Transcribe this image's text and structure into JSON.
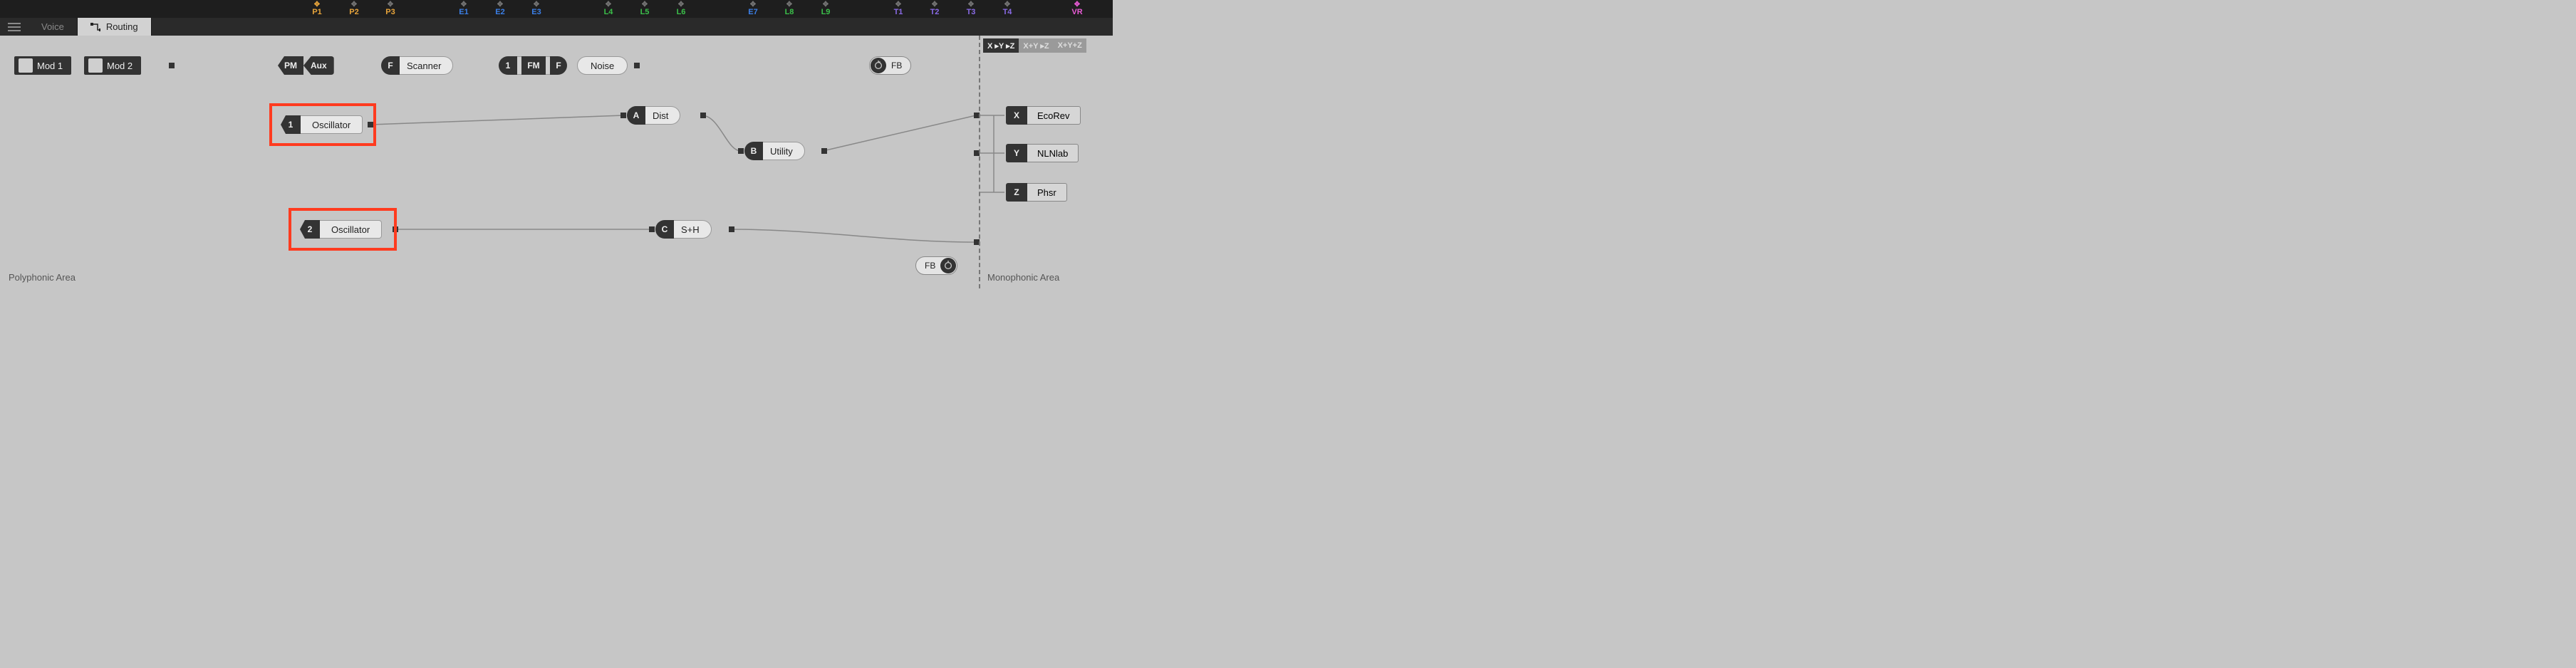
{
  "toolbar": {
    "groups": [
      {
        "id": "P1",
        "color": "#e7a43b"
      },
      {
        "id": "P2",
        "color": "#e7a43b"
      },
      {
        "id": "P3",
        "color": "#e7a43b"
      },
      {
        "id": "E1",
        "color": "#3b7fe7"
      },
      {
        "id": "E2",
        "color": "#3b7fe7"
      },
      {
        "id": "E3",
        "color": "#3b7fe7"
      },
      {
        "id": "L4",
        "color": "#3bbf4a"
      },
      {
        "id": "L5",
        "color": "#3bbf4a"
      },
      {
        "id": "L6",
        "color": "#3bbf4a"
      },
      {
        "id": "E7",
        "color": "#3b7fe7"
      },
      {
        "id": "L8",
        "color": "#3bbf4a"
      },
      {
        "id": "L9",
        "color": "#3bbf4a"
      },
      {
        "id": "T1",
        "color": "#8a6be7"
      },
      {
        "id": "T2",
        "color": "#8a6be7"
      },
      {
        "id": "T3",
        "color": "#8a6be7"
      },
      {
        "id": "T4",
        "color": "#8a6be7"
      },
      {
        "id": "VR",
        "color": "#e75bd4"
      }
    ],
    "positions": [
      445,
      497,
      548,
      651,
      702,
      753,
      854,
      905,
      956,
      1057,
      1108,
      1159,
      1261,
      1312,
      1363,
      1414,
      1512
    ],
    "highlighted": [
      "P1",
      "VR"
    ]
  },
  "tabs": {
    "voice": "Voice",
    "routing": "Routing"
  },
  "mods": {
    "mod1": "Mod 1",
    "mod2": "Mod 2"
  },
  "nodes": {
    "pm": {
      "cap": "PM",
      "label": "Aux"
    },
    "scanner": {
      "cap": "F",
      "label": "Scanner"
    },
    "n1": {
      "cap": "1"
    },
    "fm": {
      "cap": "FM"
    },
    "nf": {
      "cap": "F"
    },
    "noise": {
      "label": "Noise"
    },
    "osc1": {
      "cap": "1",
      "label": "Oscillator"
    },
    "osc2": {
      "cap": "2",
      "label": "Oscillator"
    },
    "a": {
      "cap": "A",
      "label": "Dist"
    },
    "b": {
      "cap": "B",
      "label": "Utility"
    },
    "c": {
      "cap": "C",
      "label": "S+H"
    },
    "fb_top": "FB",
    "fb_bot": "FB"
  },
  "mono": {
    "modes": [
      "X ▸Y ▸Z",
      "X+Y ▸Z",
      "X+Y+Z"
    ],
    "x": {
      "cap": "X",
      "label": "EcoRev"
    },
    "y": {
      "cap": "Y",
      "label": "NLNlab"
    },
    "z": {
      "cap": "Z",
      "label": "Phsr"
    }
  },
  "labels": {
    "poly": "Polyphonic Area",
    "mono": "Monophonic Area"
  },
  "colors": {
    "highlight": "#ff3b1f",
    "wire": "#888888",
    "dark": "#333333"
  }
}
